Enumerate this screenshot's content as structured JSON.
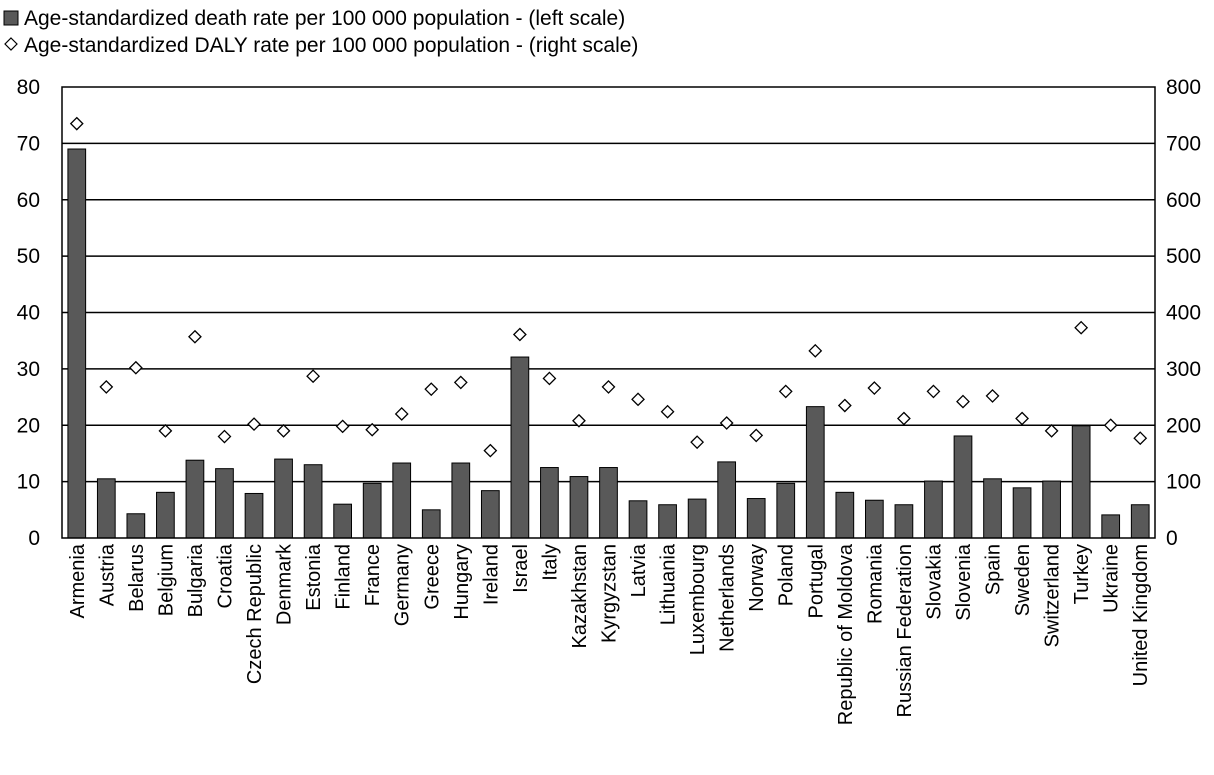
{
  "chart_data": {
    "type": "bar",
    "title": "",
    "legend": {
      "placement": "top-left",
      "entries": [
        {
          "label": "Age-standardized death rate per 100 000 population - (left scale)",
          "marker": "bar-square"
        },
        {
          "label": "Age-standardized DALY rate per 100 000 population - (right scale)",
          "marker": "diamond"
        }
      ]
    },
    "categories": [
      "Armenia",
      "Austria",
      "Belarus",
      "Belgium",
      "Bulgaria",
      "Croatia",
      "Czech Republic",
      "Denmark",
      "Estonia",
      "Finland",
      "France",
      "Germany",
      "Greece",
      "Hungary",
      "Ireland",
      "Israel",
      "Italy",
      "Kazakhstan",
      "Kyrgyzstan",
      "Latvia",
      "Lithuania",
      "Luxembourg",
      "Netherlands",
      "Norway",
      "Poland",
      "Portugal",
      "Republic of Moldova",
      "Romania",
      "Russian Federation",
      "Slovakia",
      "Slovenia",
      "Spain",
      "Sweden",
      "Switzerland",
      "Turkey",
      "Ukraine",
      "United Kingdom"
    ],
    "series": [
      {
        "name": "Age-standardized death rate per 100 000 population - (left scale)",
        "type": "bar",
        "axis": "left",
        "color": "#595959",
        "values": [
          69,
          10.5,
          4.3,
          8.1,
          13.8,
          12.3,
          7.9,
          14,
          13,
          6,
          9.7,
          13.3,
          5,
          13.3,
          8.4,
          32.1,
          12.5,
          10.9,
          12.5,
          6.6,
          5.9,
          6.9,
          13.5,
          7,
          9.7,
          23.3,
          8.1,
          6.7,
          5.9,
          10.1,
          18.1,
          10.5,
          8.9,
          10.1,
          19.9,
          4.1,
          5.9
        ]
      },
      {
        "name": "Age-standardized DALY rate per 100 000 population - (right scale)",
        "type": "scatter",
        "axis": "right",
        "color": "#000000",
        "values": [
          735,
          268,
          302,
          190,
          357,
          180,
          202,
          190,
          287,
          198,
          192,
          220,
          264,
          276,
          155,
          361,
          283,
          208,
          268,
          246,
          224,
          170,
          204,
          182,
          260,
          332,
          235,
          266,
          212,
          260,
          242,
          252,
          212,
          190,
          373,
          200,
          177
        ]
      }
    ],
    "y_left": {
      "label": "",
      "min": 0,
      "max": 80,
      "ticks": [
        0,
        10,
        20,
        30,
        40,
        50,
        60,
        70,
        80
      ]
    },
    "y_right": {
      "label": "",
      "min": 0,
      "max": 800,
      "ticks": [
        0,
        100,
        200,
        300,
        400,
        500,
        600,
        700,
        800
      ]
    },
    "grid": true
  }
}
